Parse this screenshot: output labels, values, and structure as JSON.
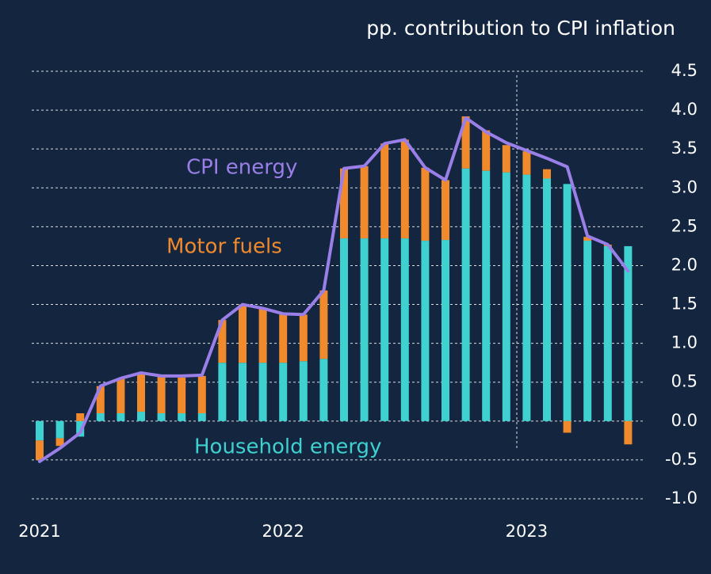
{
  "chart_data": {
    "type": "bar",
    "subtitle": "pp. contribution to CPI inflation",
    "categories": [
      "2021",
      null,
      null,
      null,
      null,
      null,
      null,
      null,
      null,
      null,
      null,
      null,
      "2022",
      null,
      null,
      null,
      null,
      null,
      null,
      null,
      null,
      null,
      null,
      null,
      "2023",
      null,
      null,
      null,
      null,
      null
    ],
    "series": [
      {
        "name": "Household energy",
        "color": "#3fd0d0",
        "kind": "bar",
        "values": [
          -0.25,
          -0.22,
          -0.2,
          0.1,
          0.1,
          0.12,
          0.1,
          0.1,
          0.1,
          0.75,
          0.75,
          0.75,
          0.75,
          0.77,
          0.8,
          2.35,
          2.35,
          2.35,
          2.35,
          2.32,
          2.33,
          3.25,
          3.22,
          3.2,
          3.17,
          3.12,
          3.05,
          2.32,
          2.25,
          2.25
        ]
      },
      {
        "name": "Motor fuels",
        "color": "#f08a2c",
        "kind": "bar",
        "values": [
          -0.25,
          -0.1,
          0.1,
          0.35,
          0.45,
          0.48,
          0.47,
          0.46,
          0.48,
          0.55,
          0.75,
          0.7,
          0.62,
          0.6,
          0.88,
          0.9,
          0.93,
          1.22,
          1.27,
          0.94,
          0.77,
          0.67,
          0.52,
          0.35,
          0.3,
          0.12,
          -0.15,
          0.05,
          0.02,
          -0.3
        ]
      },
      {
        "name": "CPI energy",
        "color": "#9b7fe8",
        "kind": "line",
        "values": [
          -0.52,
          -0.35,
          -0.15,
          0.45,
          0.55,
          0.62,
          0.58,
          0.58,
          0.59,
          1.3,
          1.5,
          1.45,
          1.38,
          1.37,
          1.68,
          3.25,
          3.28,
          3.57,
          3.62,
          3.26,
          3.1,
          3.9,
          3.72,
          3.58,
          3.48,
          3.38,
          3.27,
          2.38,
          2.27,
          1.93
        ]
      }
    ],
    "ylim": [
      -1.0,
      4.5
    ],
    "yticks": [
      {
        "value": 4.5,
        "label": "4.5"
      },
      {
        "value": 4.0,
        "label": "4.0"
      },
      {
        "value": 3.5,
        "label": "3.5"
      },
      {
        "value": 3.0,
        "label": "3.0"
      },
      {
        "value": 2.5,
        "label": "2.5"
      },
      {
        "value": 2.0,
        "label": "2.0"
      },
      {
        "value": 1.5,
        "label": "1.5"
      },
      {
        "value": 1.0,
        "label": "1.0"
      },
      {
        "value": 0.5,
        "label": "0.5"
      },
      {
        "value": 0.0,
        "label": "0.0"
      },
      {
        "value": -0.5,
        "label": "-0.5"
      },
      {
        "value": -1.0,
        "label": "-1.0"
      }
    ],
    "grid": true
  }
}
